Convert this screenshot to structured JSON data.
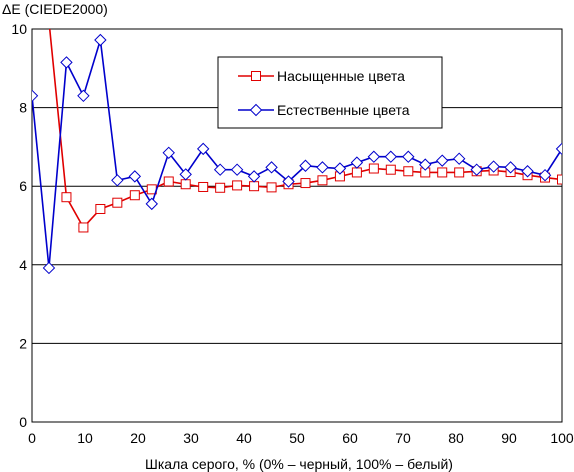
{
  "chart_data": {
    "type": "line",
    "title": "",
    "ylabel": "ΔE (CIEDE2000)",
    "xlabel": "Шкала серого, % (0% – черный, 100% – белый)",
    "xlim": [
      0,
      100
    ],
    "ylim": [
      0,
      10
    ],
    "xticks": [
      "0",
      "10",
      "20",
      "30",
      "40",
      "50",
      "60",
      "70",
      "80",
      "90",
      "100"
    ],
    "yticks": [
      "0",
      "2",
      "4",
      "6",
      "8",
      "10"
    ],
    "grid": "horizontal",
    "legend_position": "top-right",
    "series": [
      {
        "name": "Насыщенные цвета",
        "color": "#e00000",
        "marker": "square",
        "x": [
          3.2,
          6.5,
          9.7,
          12.9,
          16.1,
          19.4,
          22.6,
          25.8,
          29.0,
          32.3,
          35.5,
          38.7,
          41.9,
          45.2,
          48.4,
          51.6,
          54.8,
          58.1,
          61.3,
          64.5,
          67.7,
          71.0,
          74.2,
          77.4,
          80.6,
          83.9,
          87.1,
          90.3,
          93.5,
          96.8,
          100
        ],
        "values": [
          10.2,
          5.72,
          4.95,
          5.42,
          5.58,
          5.77,
          5.92,
          6.12,
          6.05,
          5.98,
          5.96,
          6.02,
          6.0,
          5.97,
          6.05,
          6.08,
          6.15,
          6.25,
          6.35,
          6.45,
          6.42,
          6.38,
          6.35,
          6.35,
          6.35,
          6.38,
          6.4,
          6.36,
          6.28,
          6.22,
          6.17
        ]
      },
      {
        "name": "Естественные цвета",
        "color": "#0000cc",
        "marker": "diamond",
        "x": [
          0,
          3.2,
          6.5,
          9.7,
          12.9,
          16.1,
          19.4,
          22.6,
          25.8,
          29.0,
          32.3,
          35.5,
          38.7,
          41.9,
          45.2,
          48.4,
          51.6,
          54.8,
          58.1,
          61.3,
          64.5,
          67.7,
          71.0,
          74.2,
          77.4,
          80.6,
          83.9,
          87.1,
          90.3,
          93.5,
          96.8,
          100
        ],
        "values": [
          8.3,
          3.92,
          9.15,
          8.3,
          9.72,
          6.15,
          6.25,
          5.55,
          6.85,
          6.3,
          6.95,
          6.42,
          6.42,
          6.25,
          6.48,
          6.12,
          6.52,
          6.48,
          6.45,
          6.6,
          6.75,
          6.75,
          6.75,
          6.55,
          6.65,
          6.7,
          6.42,
          6.5,
          6.48,
          6.38,
          6.28,
          6.95
        ]
      }
    ]
  }
}
